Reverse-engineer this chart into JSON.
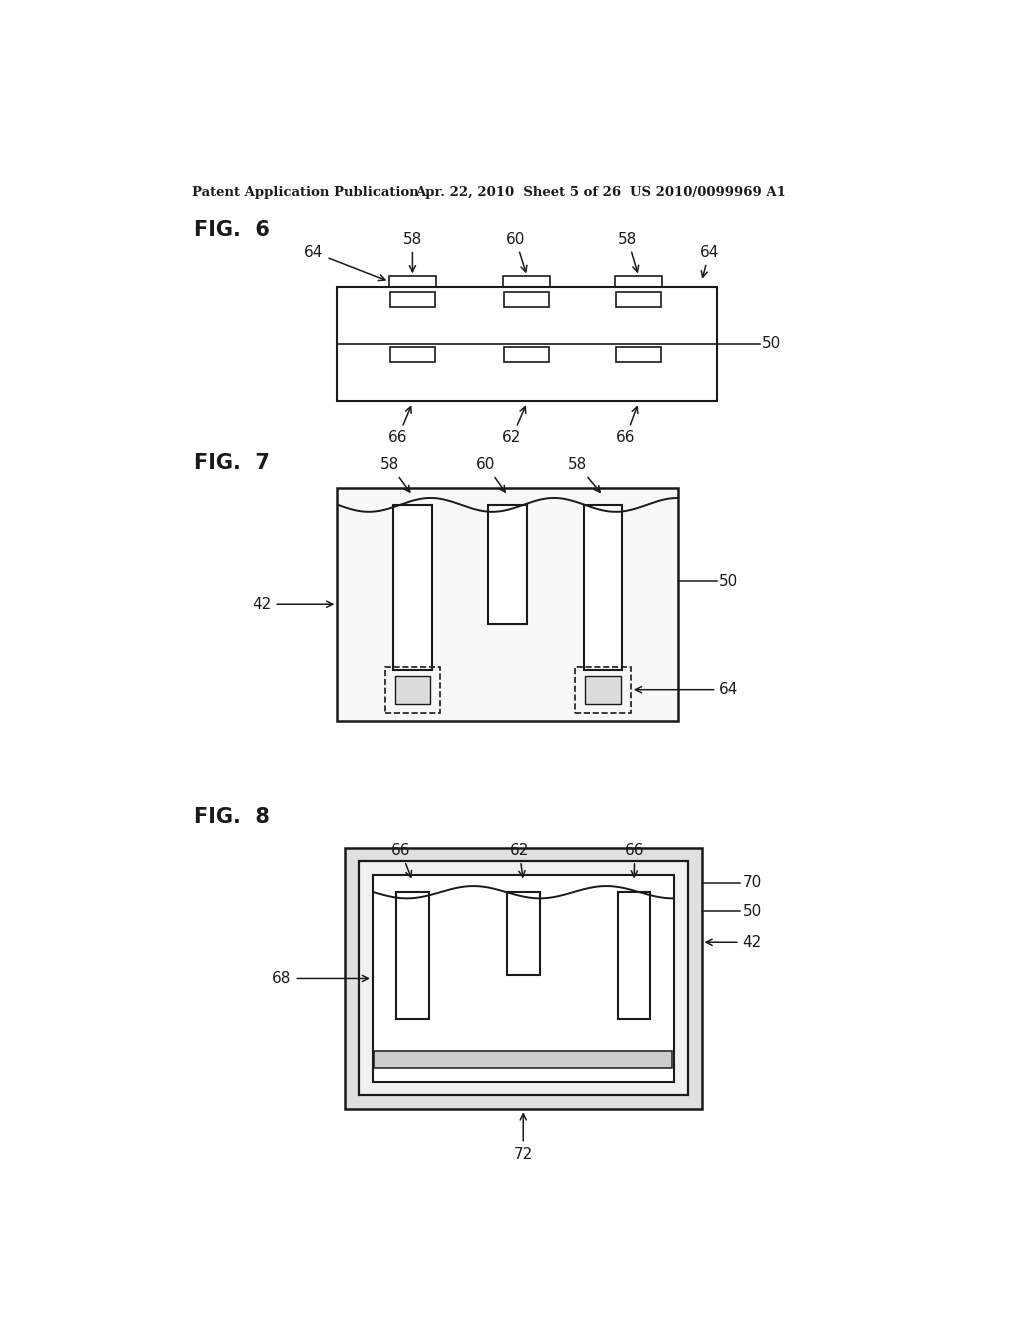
{
  "bg_color": "#ffffff",
  "header_left": "Patent Application Publication",
  "header_mid": "Apr. 22, 2010  Sheet 5 of 26",
  "header_right": "US 2010/0099969 A1",
  "fig6_label": "FIG.  6",
  "fig7_label": "FIG.  7",
  "fig8_label": "FIG.  8",
  "line_color": "#1a1a1a",
  "text_color": "#1a1a1a"
}
